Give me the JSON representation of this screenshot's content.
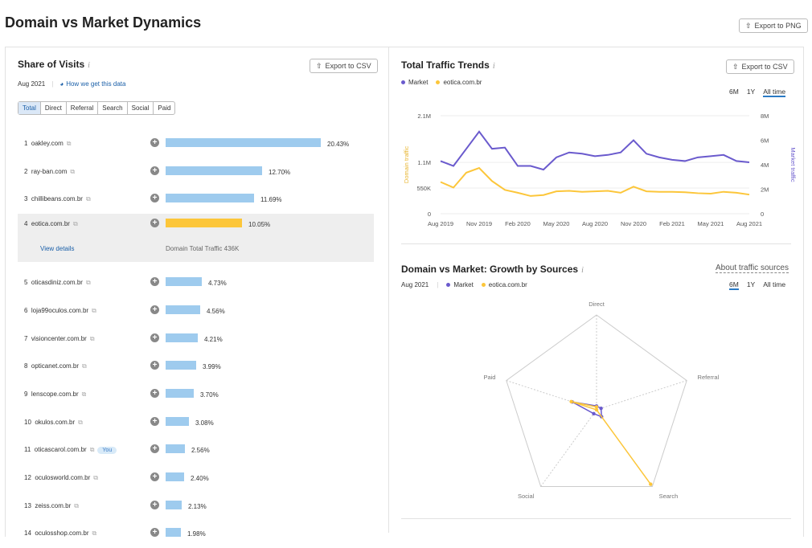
{
  "page": {
    "title": "Domain vs Market Dynamics",
    "export_png": "Export to PNG"
  },
  "share": {
    "title": "Share of Visits",
    "info_glyph": "i",
    "export_csv": "Export to CSV",
    "date": "Aug 2021",
    "how_link": "How we get this data",
    "tabs": [
      "Total",
      "Direct",
      "Referral",
      "Search",
      "Social",
      "Paid"
    ],
    "active_tab": "Total",
    "rows": [
      {
        "rank": "1",
        "domain": "oakley.com",
        "pct": "20.43%",
        "value": 20.43
      },
      {
        "rank": "2",
        "domain": "ray-ban.com",
        "pct": "12.70%",
        "value": 12.7
      },
      {
        "rank": "3",
        "domain": "chillibeans.com.br",
        "pct": "11.69%",
        "value": 11.69
      },
      {
        "rank": "4",
        "domain": "eotica.com.br",
        "pct": "10.05%",
        "value": 10.05,
        "selected": true
      },
      {
        "rank": "5",
        "domain": "oticasdiniz.com.br",
        "pct": "4.73%",
        "value": 4.73
      },
      {
        "rank": "6",
        "domain": "loja99oculos.com.br",
        "pct": "4.56%",
        "value": 4.56
      },
      {
        "rank": "7",
        "domain": "visioncenter.com.br",
        "pct": "4.21%",
        "value": 4.21
      },
      {
        "rank": "8",
        "domain": "opticanet.com.br",
        "pct": "3.99%",
        "value": 3.99
      },
      {
        "rank": "9",
        "domain": "lenscope.com.br",
        "pct": "3.70%",
        "value": 3.7
      },
      {
        "rank": "10",
        "domain": "okulos.com.br",
        "pct": "3.08%",
        "value": 3.08
      },
      {
        "rank": "11",
        "domain": "oticascarol.com.br",
        "pct": "2.56%",
        "value": 2.56,
        "badge": "You"
      },
      {
        "rank": "12",
        "domain": "oculosworld.com.br",
        "pct": "2.40%",
        "value": 2.4
      },
      {
        "rank": "13",
        "domain": "zeiss.com.br",
        "pct": "2.13%",
        "value": 2.13
      },
      {
        "rank": "14",
        "domain": "oculosshop.com.br",
        "pct": "1.98%",
        "value": 1.98
      }
    ],
    "selected_details": {
      "view_details": "View details",
      "total_traffic": "Domain Total Traffic  436K"
    }
  },
  "trends": {
    "title": "Total Traffic Trends",
    "export_csv": "Export to CSV",
    "legend": [
      {
        "name": "Market",
        "color": "#6a5acd"
      },
      {
        "name": "eotica.com.br",
        "color": "#fcc63a"
      }
    ],
    "ranges": [
      "6M",
      "1Y",
      "All time"
    ],
    "active_range": "All time"
  },
  "growth": {
    "title": "Domain vs Market: Growth by Sources",
    "about_link": "About traffic sources",
    "date": "Aug 2021",
    "legend": [
      {
        "name": "Market",
        "color": "#6a5acd"
      },
      {
        "name": "eotica.com.br",
        "color": "#fcc63a"
      }
    ],
    "ranges": [
      "6M",
      "1Y",
      "All time"
    ],
    "active_range": "6M"
  },
  "chart_data": [
    {
      "type": "line",
      "title": "Total Traffic Trends",
      "x_ticks": [
        "Aug 2019",
        "Nov 2019",
        "Feb 2020",
        "May 2020",
        "Aug 2020",
        "Nov 2020",
        "Feb 2021",
        "May 2021",
        "Aug 2021"
      ],
      "x": [
        "Aug 2019",
        "Sep 2019",
        "Oct 2019",
        "Nov 2019",
        "Dec 2019",
        "Jan 2020",
        "Feb 2020",
        "Mar 2020",
        "Apr 2020",
        "May 2020",
        "Jun 2020",
        "Jul 2020",
        "Aug 2020",
        "Sep 2020",
        "Oct 2020",
        "Nov 2020",
        "Dec 2020",
        "Jan 2021",
        "Feb 2021",
        "Mar 2021",
        "Apr 2021",
        "May 2021",
        "Jun 2021",
        "Jul 2021",
        "Aug 2021"
      ],
      "left_axis": {
        "label": "Domain traffic",
        "ticks": [
          "0",
          "550K",
          "1.1M",
          "2.1M"
        ],
        "values": [
          0,
          550000,
          1100000,
          2100000
        ]
      },
      "right_axis": {
        "label": "Market traffic",
        "ticks": [
          "0",
          "2M",
          "4M",
          "6M",
          "8M"
        ],
        "values": [
          0,
          2000000,
          4000000,
          6000000,
          8000000
        ]
      },
      "series": [
        {
          "name": "Market",
          "axis": "right",
          "color": "#6a5acd",
          "values": [
            4.3,
            3.9,
            5.3,
            6.7,
            5.3,
            5.4,
            3.9,
            3.9,
            3.6,
            4.6,
            5.0,
            4.9,
            4.7,
            4.8,
            5.0,
            6.0,
            4.9,
            4.6,
            4.4,
            4.3,
            4.6,
            4.7,
            4.8,
            4.3,
            4.2
          ]
        },
        {
          "name": "eotica.com.br",
          "axis": "left",
          "color": "#fcc63a",
          "values": [
            680000,
            560000,
            880000,
            980000,
            700000,
            510000,
            450000,
            380000,
            400000,
            480000,
            490000,
            470000,
            480000,
            490000,
            450000,
            580000,
            480000,
            470000,
            470000,
            460000,
            440000,
            430000,
            470000,
            450000,
            410000
          ]
        }
      ]
    },
    {
      "type": "radar",
      "title": "Domain vs Market: Growth by Sources",
      "axes": [
        "Direct",
        "Referral",
        "Search",
        "Social",
        "Paid"
      ],
      "series": [
        {
          "name": "Market",
          "color": "#6a5acd",
          "values": [
            0.04,
            0.05,
            0.09,
            0.05,
            0.27
          ]
        },
        {
          "name": "eotica.com.br",
          "color": "#fcc63a",
          "values": [
            0.03,
            0.0,
            0.97,
            0.0,
            0.28
          ]
        }
      ]
    }
  ]
}
